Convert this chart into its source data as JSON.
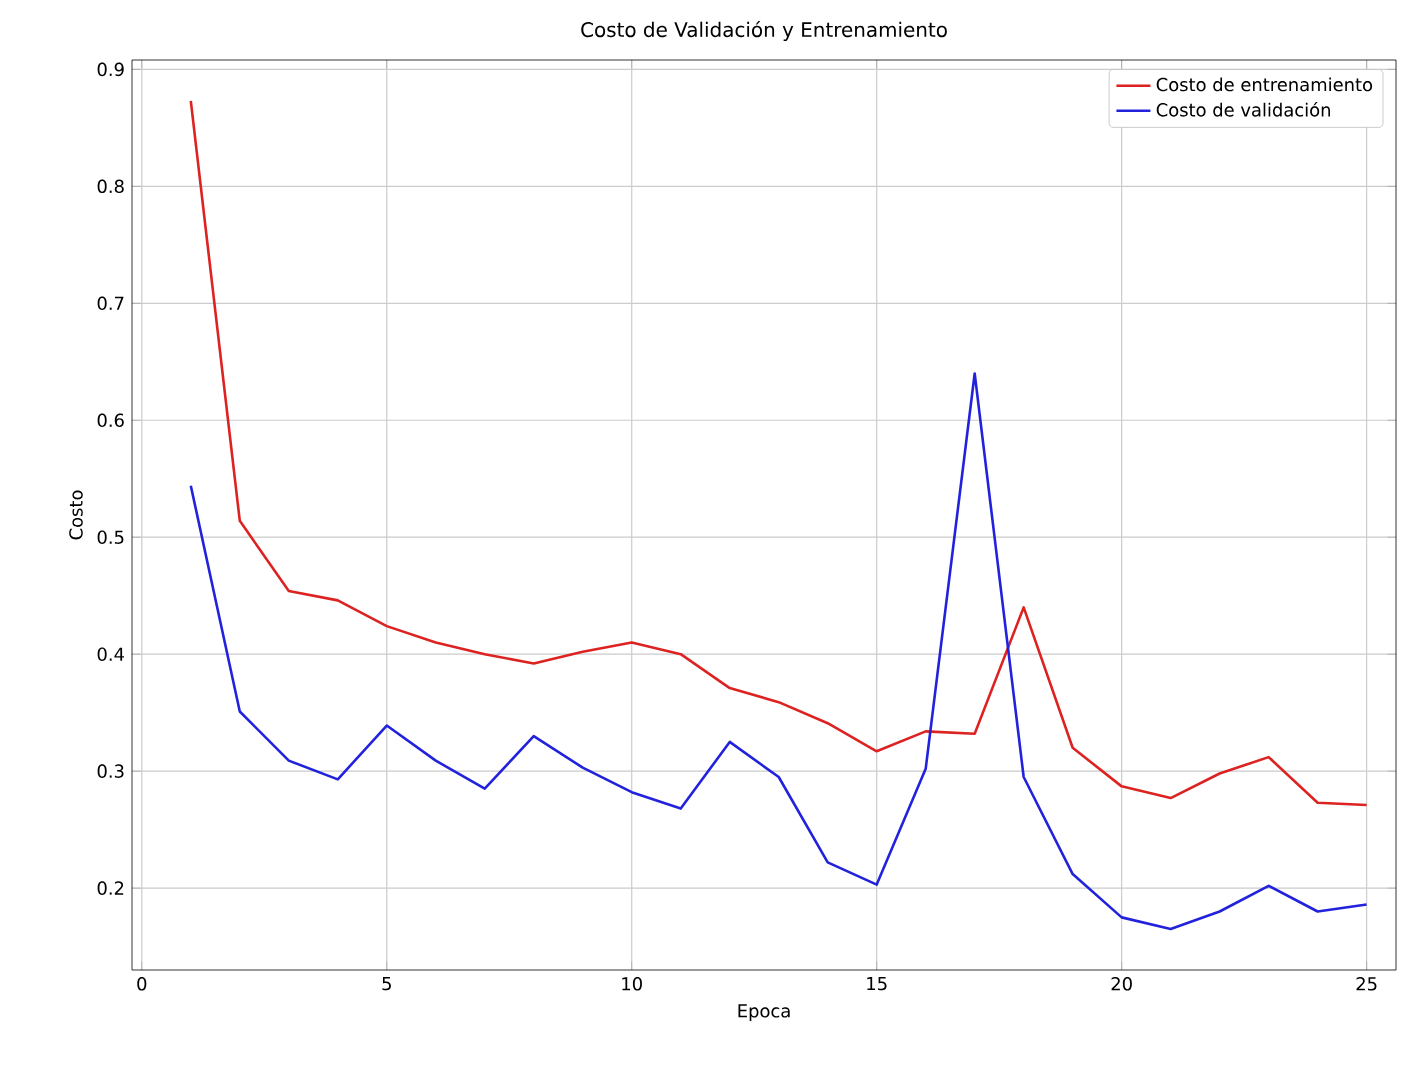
{
  "chart_data": {
    "type": "line",
    "title": "Costo de Validación y Entrenamiento",
    "xlabel": "Epoca",
    "ylabel": "Costo",
    "x": [
      1,
      2,
      3,
      4,
      5,
      6,
      7,
      8,
      9,
      10,
      11,
      12,
      13,
      14,
      15,
      16,
      17,
      18,
      19,
      20,
      21,
      22,
      23,
      24,
      25
    ],
    "series": [
      {
        "name": "Costo de entrenamiento",
        "color": "#dd2222",
        "values": [
          0.873,
          0.514,
          0.454,
          0.446,
          0.424,
          0.41,
          0.4,
          0.392,
          0.402,
          0.41,
          0.4,
          0.371,
          0.359,
          0.341,
          0.317,
          0.334,
          0.332,
          0.44,
          0.32,
          0.287,
          0.277,
          0.298,
          0.312,
          0.273,
          0.271
        ]
      },
      {
        "name": "Costo de validación",
        "color": "#2222dd",
        "values": [
          0.544,
          0.351,
          0.309,
          0.293,
          0.339,
          0.309,
          0.285,
          0.33,
          0.303,
          0.282,
          0.268,
          0.325,
          0.295,
          0.222,
          0.203,
          0.302,
          0.64,
          0.295,
          0.212,
          0.175,
          0.165,
          0.18,
          0.202,
          0.18,
          0.186
        ]
      }
    ],
    "xlim": [
      -0.2,
      25.6
    ],
    "ylim": [
      0.13,
      0.908
    ],
    "xticks": [
      0,
      5,
      10,
      15,
      20,
      25
    ],
    "yticks": [
      0.2,
      0.3,
      0.4,
      0.5,
      0.6,
      0.7,
      0.8,
      0.9
    ],
    "grid": true,
    "legend": "top right",
    "marker": "none",
    "line_style": "solid"
  }
}
